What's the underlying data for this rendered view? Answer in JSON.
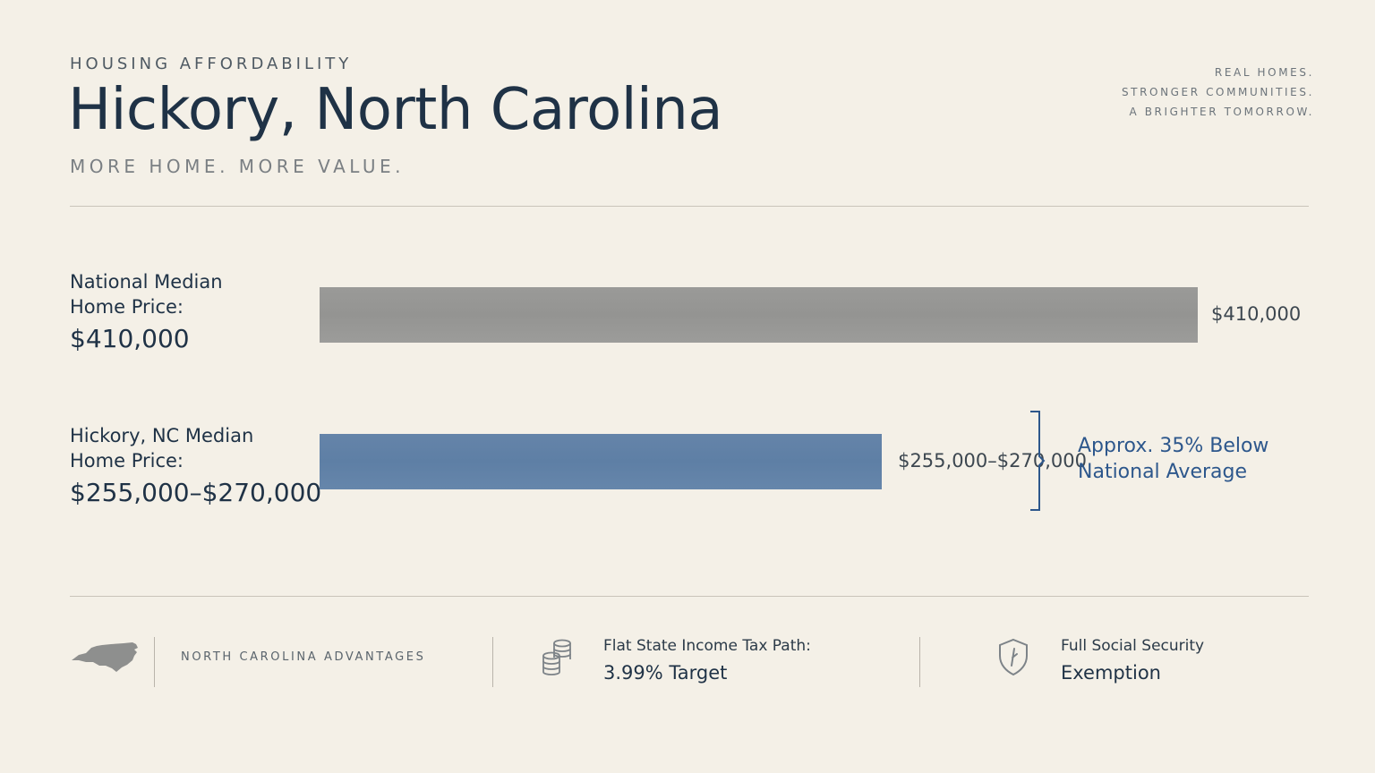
{
  "header": {
    "eyebrow": "HOUSING AFFORDABILITY",
    "title": "Hickory, North Carolina",
    "subtitle": "MORE HOME. MORE VALUE.",
    "tagline": [
      "REAL HOMES.",
      "STRONGER COMMUNITIES.",
      "A BRIGHTER TOMORROW."
    ]
  },
  "chart_data": {
    "type": "bar",
    "orientation": "horizontal",
    "categories": [
      "National Median Home Price:",
      "Hickory, NC Median Home Price:"
    ],
    "series": [
      {
        "values": [
          410000,
          262500
        ]
      }
    ],
    "category_label_lines": [
      [
        "National Median",
        "Home Price:"
      ],
      [
        "Hickory, NC Median",
        "Home Price:"
      ]
    ],
    "display_values": [
      "$410,000",
      "$255,000–$270,000"
    ],
    "ranges": [
      [
        410000,
        410000
      ],
      [
        255000,
        270000
      ]
    ],
    "bar_colors": [
      "#979795",
      "#6282a8"
    ],
    "annotation": {
      "lines": [
        "Approx. 35% Below",
        "National Average"
      ],
      "color": "#2d578c"
    },
    "xlim": [
      0,
      410000
    ],
    "grid": false
  },
  "footer": {
    "advantages_label": "NORTH CAROLINA ADVANTAGES",
    "map_icon": "north-carolina-map-icon",
    "features": [
      {
        "icon": "coin-stack-icon",
        "line1": "Flat State Income Tax Path:",
        "line2": "3.99% Target"
      },
      {
        "icon": "shield-icon",
        "line1": "Full Social Security",
        "line2": "Exemption"
      }
    ]
  }
}
